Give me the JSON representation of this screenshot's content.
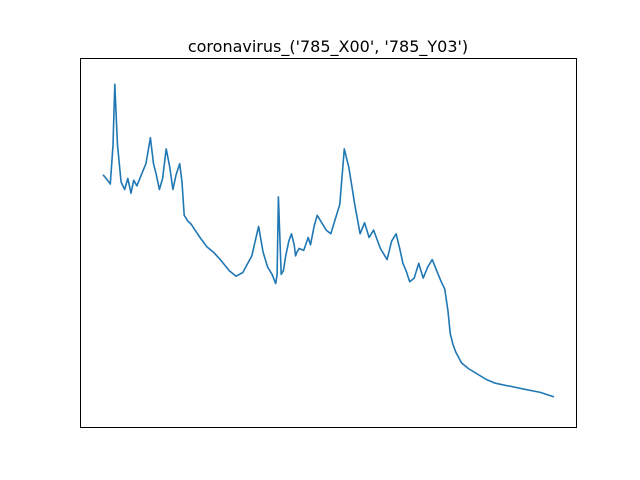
{
  "chart_data": {
    "type": "line",
    "title": "coronavirus_('785_X00', '785_Y03')",
    "xlabel": "",
    "ylabel": "",
    "x_ticks_shown": false,
    "y_ticks_shown": false,
    "grid": false,
    "legend": "none",
    "xlim": [
      -5,
      105
    ],
    "ylim": [
      -4.5,
      95.5
    ],
    "series": [
      {
        "color": "#1f77b4",
        "x": [
          0,
          1,
          1.6,
          2.2,
          2.6,
          3.2,
          4,
          4.8,
          5.5,
          6.2,
          6.8,
          7.5,
          8.5,
          9.5,
          10.5,
          11.2,
          11.8,
          12.5,
          13.2,
          14,
          14.8,
          15.5,
          16.2,
          17,
          17.5,
          18,
          18.8,
          19.6,
          20.4,
          21.5,
          23,
          24.5,
          26,
          27,
          28,
          29.5,
          31,
          33,
          34.5,
          35.5,
          36.5,
          37.5,
          38.3,
          38.6,
          38.9,
          39.5,
          40,
          40.5,
          41.2,
          41.8,
          42.4,
          42.7,
          43,
          43.5,
          44.5,
          45.5,
          46,
          46.8,
          47.5,
          48.5,
          49.5,
          50.5,
          51.5,
          52.5,
          53.5,
          54.5,
          55.3,
          55.8,
          56.4,
          57,
          58,
          59,
          60,
          61.5,
          63,
          64,
          65,
          65.8,
          66.5,
          67.2,
          68,
          69,
          70,
          71,
          72,
          73,
          74,
          75,
          75.8,
          76.5,
          77,
          77.6,
          78.2,
          79.5,
          81,
          83,
          85,
          87,
          89,
          91,
          93,
          95,
          97,
          99,
          100
        ],
        "y": [
          64,
          62.5,
          61.5,
          72,
          88.5,
          72,
          62,
          60,
          63,
          59,
          62.5,
          61,
          64,
          67,
          74,
          67,
          64,
          60,
          63,
          71,
          66,
          60,
          64,
          67,
          62,
          53,
          51.5,
          50.5,
          49,
          47,
          44.5,
          43,
          41,
          39.5,
          38,
          36.5,
          37.5,
          42,
          50,
          43,
          39,
          37,
          34.5,
          37,
          58,
          37,
          38,
          42,
          46,
          48,
          45,
          42,
          43,
          44,
          43.5,
          47,
          45,
          50,
          53,
          51,
          49,
          48,
          52,
          56,
          71,
          66,
          60,
          56,
          52,
          48,
          51,
          47,
          49,
          44,
          41,
          46,
          48,
          44,
          40,
          38,
          35,
          36,
          40,
          36,
          39,
          41,
          38,
          35,
          33,
          27,
          21,
          18,
          16,
          13,
          11.5,
          10,
          8.5,
          7.5,
          7,
          6.5,
          6,
          5.5,
          5,
          4.2,
          3.8
        ]
      }
    ]
  }
}
